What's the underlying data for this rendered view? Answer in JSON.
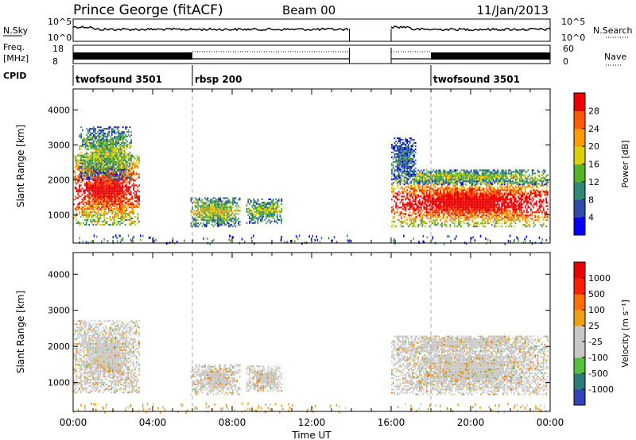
{
  "header": {
    "station": "Prince George (fitACF)",
    "beam": "Beam 00",
    "date": "11/Jan/2013"
  },
  "top_panels": {
    "nsky_label": "N.Sky",
    "nsky_ticks": [
      "10^5",
      "10^0"
    ],
    "nsearch_label": "N.Search",
    "nsearch_ticks": [
      "10^5",
      "10^0"
    ],
    "freq_label_line1": "Freq.",
    "freq_label_line2": "[MHz]",
    "freq_ticks": [
      "18",
      "8"
    ],
    "nave_label": "Nave",
    "nave_ticks": [
      "60",
      "0"
    ],
    "cpid_label": "CPID",
    "cpid_segments": [
      {
        "name": "twofsound 3501",
        "start_hour": 0
      },
      {
        "name": "rbsp 200",
        "start_hour": 6
      },
      {
        "name": "twofsound 3501",
        "start_hour": 18
      }
    ],
    "data_gaps_hours": [
      [
        13.9,
        16.0
      ]
    ]
  },
  "chart_data": [
    {
      "type": "heatmap",
      "name": "power",
      "ylabel": "Slant Range [km]",
      "xlabel": "Time UT",
      "x_ticks": [
        "00:00",
        "04:00",
        "08:00",
        "12:00",
        "16:00",
        "20:00",
        "00:00"
      ],
      "xlim_hours": [
        0,
        24
      ],
      "ylim": [
        200,
        4600
      ],
      "y_ticks": [
        1000,
        2000,
        3000,
        4000
      ],
      "colorbar_label": "Power [dB]",
      "colorbar_ticks": [
        "28",
        "24",
        "20",
        "16",
        "12",
        "8",
        "4"
      ],
      "colorbar_colors": [
        "#0000ff",
        "#2e4ca8",
        "#2e8a76",
        "#55b22a",
        "#dcd000",
        "#ff9a00",
        "#ff5a00",
        "#ee0000"
      ],
      "regions": [
        {
          "t0": 0.0,
          "t1": 3.3,
          "r0": 700,
          "r1": 2700,
          "level": 0.75
        },
        {
          "t0": 0.3,
          "t1": 2.9,
          "r0": 2000,
          "r1": 3500,
          "level": 0.35
        },
        {
          "t0": 5.9,
          "t1": 8.4,
          "r0": 650,
          "r1": 1500,
          "level": 0.4
        },
        {
          "t0": 8.7,
          "t1": 10.5,
          "r0": 750,
          "r1": 1450,
          "level": 0.35
        },
        {
          "t0": 16.0,
          "t1": 23.9,
          "r0": 650,
          "r1": 2000,
          "level": 0.8
        },
        {
          "t0": 16.0,
          "t1": 23.9,
          "r0": 1850,
          "r1": 2300,
          "level": 0.35
        },
        {
          "t0": 16.0,
          "t1": 17.2,
          "r0": 2000,
          "r1": 3200,
          "level": 0.2
        }
      ]
    },
    {
      "type": "heatmap",
      "name": "velocity",
      "ylabel": "Slant Range [km]",
      "xlabel": "Time UT",
      "x_ticks": [
        "00:00",
        "04:00",
        "08:00",
        "12:00",
        "16:00",
        "20:00",
        "00:00"
      ],
      "xlim_hours": [
        0,
        24
      ],
      "ylim": [
        200,
        4600
      ],
      "y_ticks": [
        1000,
        2000,
        3000,
        4000
      ],
      "colorbar_label": "Velocity [m s⁻¹]",
      "colorbar_ticks": [
        "1000",
        "500",
        "100",
        "25",
        "-25",
        "-100",
        "-500",
        "-1000"
      ],
      "colorbar_colors": [
        "#2f45b8",
        "#2f7a7a",
        "#55c040",
        "#c8c8c8",
        "#c8c8c8",
        "#f0a010",
        "#ff7000",
        "#ff2000",
        "#ee0000"
      ],
      "regions": [
        {
          "t0": 0.0,
          "t1": 3.3,
          "r0": 700,
          "r1": 2700
        },
        {
          "t0": 5.9,
          "t1": 8.4,
          "r0": 650,
          "r1": 1500
        },
        {
          "t0": 8.7,
          "t1": 10.5,
          "r0": 750,
          "r1": 1450
        },
        {
          "t0": 16.0,
          "t1": 23.9,
          "r0": 650,
          "r1": 2000
        },
        {
          "t0": 16.0,
          "t1": 23.9,
          "r0": 1850,
          "r1": 2300
        }
      ]
    }
  ]
}
